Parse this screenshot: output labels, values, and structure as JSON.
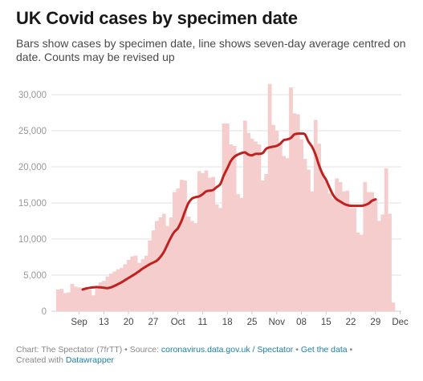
{
  "header": {
    "title": "UK Covid cases by specimen date",
    "subtitle": "Bars show cases by specimen date, line shows seven-day average centred on date. Counts may be revised up"
  },
  "footer": {
    "prefix": "Chart: The Spectator (7frTT) • Source: ",
    "source_link": "coronavirus.data.gov.uk / Spectator",
    "sep": " • ",
    "data_link": "Get the data",
    "sep2": " •",
    "created_with": "Created with ",
    "tool_link": "Datawrapper"
  },
  "colors": {
    "bar": "#f4cdcc",
    "line": "#c0211f",
    "grid": "#e1e1e1",
    "link": "#1d81a2"
  },
  "chart_data": {
    "type": "bar",
    "x_start": "2020-08-31",
    "x_ticks": [
      {
        "date": "2020-09-06",
        "label": "Sep"
      },
      {
        "date": "2020-09-13",
        "label": "13"
      },
      {
        "date": "2020-09-20",
        "label": "20"
      },
      {
        "date": "2020-09-27",
        "label": "27"
      },
      {
        "date": "2020-10-04",
        "label": "Oct"
      },
      {
        "date": "2020-10-11",
        "label": "11"
      },
      {
        "date": "2020-10-18",
        "label": "18"
      },
      {
        "date": "2020-10-25",
        "label": "25"
      },
      {
        "date": "2020-11-01",
        "label": "Nov"
      },
      {
        "date": "2020-11-08",
        "label": "08"
      },
      {
        "date": "2020-11-15",
        "label": "15"
      },
      {
        "date": "2020-11-22",
        "label": "22"
      },
      {
        "date": "2020-11-29",
        "label": "29"
      },
      {
        "date": "2020-12-06",
        "label": "Dec"
      }
    ],
    "y_ticks": [
      0,
      5000,
      10000,
      15000,
      20000,
      25000,
      30000
    ],
    "ylim": [
      0,
      32000
    ],
    "grid": true,
    "series": [
      {
        "kind": "bar",
        "values": [
          3000,
          3100,
          2500,
          2600,
          3800,
          3400,
          3300,
          3200,
          3100,
          3000,
          2200,
          3300,
          4000,
          4200,
          4800,
          5200,
          5500,
          5800,
          6000,
          6500,
          7100,
          7600,
          7700,
          6700,
          7200,
          7700,
          9800,
          11200,
          12500,
          13000,
          13500,
          11800,
          13000,
          16500,
          17000,
          18200,
          18100,
          13100,
          12500,
          12200,
          19400,
          19100,
          19500,
          18500,
          18600,
          14800,
          14300,
          26000,
          26000,
          23100,
          22900,
          16200,
          15700,
          26400,
          24700,
          23900,
          23500,
          23100,
          18100,
          19000,
          31500,
          25800,
          25000,
          23100,
          21500,
          21200,
          31000,
          27400,
          27300,
          23800,
          21100,
          19600,
          16600,
          26500,
          23200,
          19200,
          18000,
          16300,
          15600,
          18400,
          17900,
          16600,
          16700,
          14300,
          14300,
          10900,
          10600,
          17900,
          16500,
          16500,
          15600,
          12500,
          13400,
          19800,
          13500,
          1200
        ]
      },
      {
        "kind": "line",
        "start_index": 7,
        "values": [
          3000,
          3150,
          3250,
          3300,
          3350,
          3300,
          3250,
          3200,
          3300,
          3500,
          3750,
          4000,
          4300,
          4600,
          4900,
          5200,
          5550,
          5900,
          6200,
          6500,
          6750,
          7000,
          7500,
          8200,
          9200,
          10200,
          11000,
          11500,
          12500,
          13800,
          15000,
          15600,
          15800,
          15900,
          16200,
          16600,
          16700,
          16800,
          17200,
          17600,
          18800,
          19800,
          20800,
          21400,
          21700,
          21900,
          22000,
          21700,
          21600,
          21800,
          21800,
          21900,
          22500,
          22700,
          22800,
          22900,
          23200,
          23700,
          23800,
          24000,
          24500,
          24600,
          24600,
          24500,
          23500,
          22800,
          21700,
          20200,
          19000,
          18200,
          17100,
          16100,
          15500,
          15200,
          14900,
          14700,
          14600,
          14600,
          14600,
          14600,
          14700,
          14900,
          15300,
          15500
        ]
      }
    ]
  }
}
